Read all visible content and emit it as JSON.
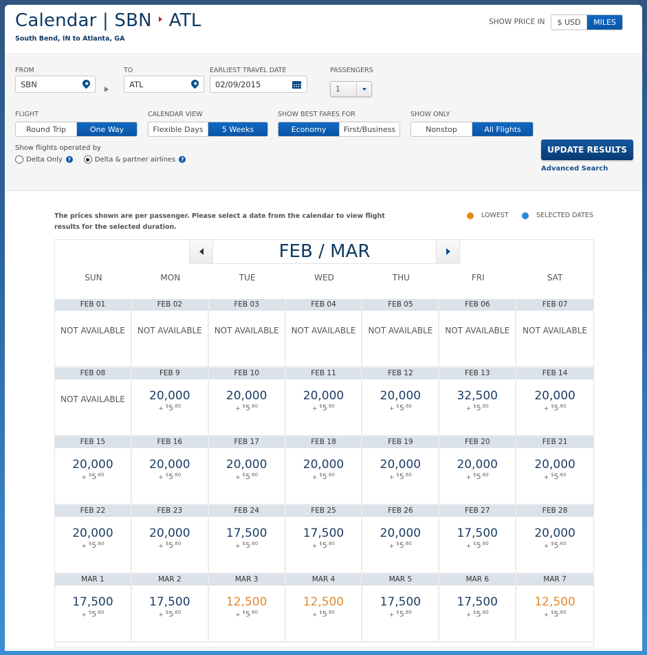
{
  "header": {
    "title_prefix": "Calendar | SBN",
    "title_dest": "ATL",
    "subtitle": "South Bend, IN to Atlanta, GA",
    "show_price_in_label": "SHOW PRICE IN",
    "price_options": [
      {
        "label": "$ USD",
        "selected": false
      },
      {
        "label": "MILES",
        "selected": true
      }
    ]
  },
  "search": {
    "from_label": "FROM",
    "from_value": "SBN",
    "to_label": "TO",
    "to_value": "ATL",
    "date_label": "EARLIEST TRAVEL DATE",
    "date_value": "02/09/2015",
    "passengers_label": "PASSENGERS",
    "passengers_value": "1",
    "flight_label": "FLIGHT",
    "flight_options": [
      {
        "label": "Round Trip",
        "selected": false
      },
      {
        "label": "One Way",
        "selected": true
      }
    ],
    "calendar_view_label": "CALENDAR VIEW",
    "calendar_view_options": [
      {
        "label": "Flexible Days",
        "selected": false
      },
      {
        "label": "5 Weeks",
        "selected": true
      }
    ],
    "best_fares_label": "SHOW BEST FARES FOR",
    "best_fares_options": [
      {
        "label": "Economy",
        "selected": true
      },
      {
        "label": "First/Business",
        "selected": false
      }
    ],
    "show_only_label": "SHOW ONLY",
    "show_only_options": [
      {
        "label": "Nonstop",
        "selected": false
      },
      {
        "label": "All Flights",
        "selected": true
      }
    ],
    "operated_by_label": "Show flights operated by",
    "operated_by_options": [
      {
        "label": "Delta Only",
        "selected": false
      },
      {
        "label": "Delta & partner airlines",
        "selected": true
      }
    ],
    "update_button": "UPDATE RESULTS",
    "advanced_search": "Advanced Search"
  },
  "calendar": {
    "note": "The prices shown are per passenger. Please select a date from the calendar to view flight results for the selected duration.",
    "legend": [
      {
        "label": "LOWEST",
        "color": "#e8891d"
      },
      {
        "label": "SELECTED DATES",
        "color": "#2a86d8"
      }
    ],
    "month_label": "FEB / MAR",
    "days_of_week": [
      "SUN",
      "MON",
      "TUE",
      "WED",
      "THU",
      "FRI",
      "SAT"
    ],
    "tax_prefix": "+ ",
    "tax_currency": "$",
    "tax_whole": "5",
    "tax_cents": ".60",
    "not_available": "NOT AVAILABLE",
    "weeks": [
      [
        {
          "date": "FEB 01",
          "miles": null
        },
        {
          "date": "FEB 02",
          "miles": null
        },
        {
          "date": "FEB 03",
          "miles": null
        },
        {
          "date": "FEB 04",
          "miles": null
        },
        {
          "date": "FEB 05",
          "miles": null
        },
        {
          "date": "FEB 06",
          "miles": null
        },
        {
          "date": "FEB 07",
          "miles": null
        }
      ],
      [
        {
          "date": "FEB 08",
          "miles": null
        },
        {
          "date": "FEB 9",
          "miles": "20,000"
        },
        {
          "date": "FEB 10",
          "miles": "20,000"
        },
        {
          "date": "FEB 11",
          "miles": "20,000"
        },
        {
          "date": "FEB 12",
          "miles": "20,000"
        },
        {
          "date": "FEB 13",
          "miles": "32,500"
        },
        {
          "date": "FEB 14",
          "miles": "20,000"
        }
      ],
      [
        {
          "date": "FEB 15",
          "miles": "20,000"
        },
        {
          "date": "FEB 16",
          "miles": "20,000"
        },
        {
          "date": "FEB 17",
          "miles": "20,000"
        },
        {
          "date": "FEB 18",
          "miles": "20,000"
        },
        {
          "date": "FEB 19",
          "miles": "20,000"
        },
        {
          "date": "FEB 20",
          "miles": "20,000"
        },
        {
          "date": "FEB 21",
          "miles": "20,000"
        }
      ],
      [
        {
          "date": "FEB 22",
          "miles": "20,000"
        },
        {
          "date": "FEB 23",
          "miles": "20,000"
        },
        {
          "date": "FEB 24",
          "miles": "17,500"
        },
        {
          "date": "FEB 25",
          "miles": "17,500"
        },
        {
          "date": "FEB 26",
          "miles": "20,000"
        },
        {
          "date": "FEB 27",
          "miles": "17,500"
        },
        {
          "date": "FEB 28",
          "miles": "20,000"
        }
      ],
      [
        {
          "date": "MAR 1",
          "miles": "17,500"
        },
        {
          "date": "MAR 2",
          "miles": "17,500"
        },
        {
          "date": "MAR 3",
          "miles": "12,500",
          "lowest": true
        },
        {
          "date": "MAR 4",
          "miles": "12,500",
          "lowest": true
        },
        {
          "date": "MAR 5",
          "miles": "17,500"
        },
        {
          "date": "MAR 6",
          "miles": "17,500"
        },
        {
          "date": "MAR 7",
          "miles": "12,500",
          "lowest": true
        }
      ]
    ]
  }
}
